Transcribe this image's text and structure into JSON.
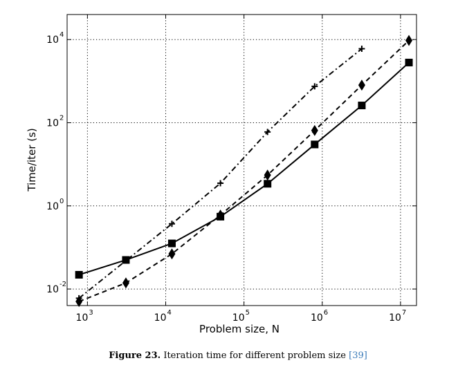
{
  "chart_data": {
    "type": "line",
    "xlabel": "Problem size, N",
    "ylabel": "Time/iter (s)",
    "xscale": "log",
    "yscale": "log",
    "xlim": [
      550,
      16000000
    ],
    "ylim": [
      0.004,
      40000
    ],
    "grid": true,
    "x_ticks": [
      {
        "value": 1000,
        "base": "10",
        "exp": "3"
      },
      {
        "value": 10000,
        "base": "10",
        "exp": "4"
      },
      {
        "value": 100000,
        "base": "10",
        "exp": "5"
      },
      {
        "value": 1000000,
        "base": "10",
        "exp": "6"
      },
      {
        "value": 10000000,
        "base": "10",
        "exp": "7"
      }
    ],
    "y_ticks": [
      {
        "value": 0.01,
        "base": "10",
        "exp": "-2"
      },
      {
        "value": 1,
        "base": "10",
        "exp": "0"
      },
      {
        "value": 100,
        "base": "10",
        "exp": "2"
      },
      {
        "value": 10000,
        "base": "10",
        "exp": "4"
      }
    ],
    "series": [
      {
        "marker": "square",
        "dash": "solid",
        "x": [
          780,
          3100,
          12000,
          50000,
          200000,
          800000,
          3200000,
          12800000
        ],
        "y": [
          0.022,
          0.05,
          0.125,
          0.55,
          3.4,
          30,
          260,
          2800
        ]
      },
      {
        "marker": "diamond",
        "dash": "dashed",
        "x": [
          780,
          3100,
          12000,
          50000,
          200000,
          800000,
          3200000,
          12800000
        ],
        "y": [
          0.005,
          0.014,
          0.07,
          0.6,
          5.5,
          65,
          800,
          9500
        ]
      },
      {
        "marker": "plus",
        "dash": "dashdot",
        "x": [
          780,
          12000,
          50000,
          200000,
          800000,
          3200000
        ],
        "y": [
          0.006,
          0.37,
          3.5,
          60,
          750,
          6000
        ]
      }
    ]
  },
  "caption": {
    "label": "Figure 23.",
    "text": "Iteration time for different problem size",
    "ref": "[39]"
  }
}
